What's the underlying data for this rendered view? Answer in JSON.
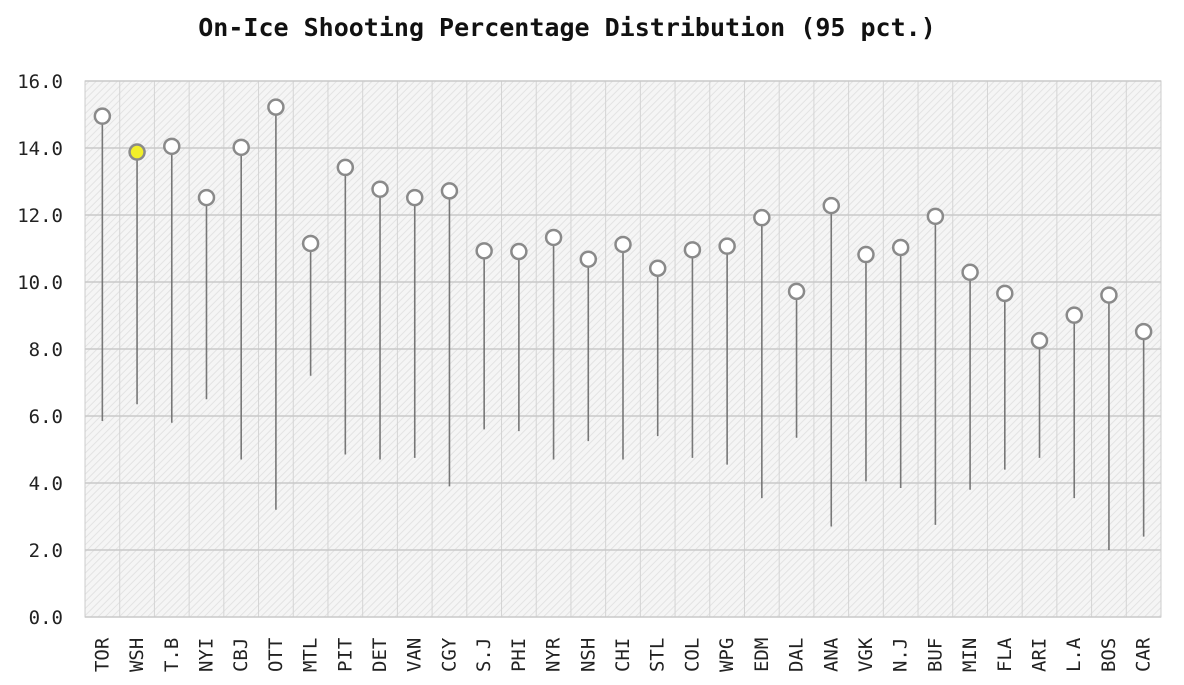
{
  "chart_data": {
    "type": "scatter",
    "title": "On-Ice Shooting Percentage Distribution (95 pct.)",
    "xlabel": "",
    "ylabel": "",
    "ylim": [
      0,
      16
    ],
    "y_ticks": [
      "0.0",
      "2.0",
      "4.0",
      "6.0",
      "8.0",
      "10.0",
      "12.0",
      "14.0",
      "16.0"
    ],
    "grid": true,
    "categories": [
      "TOR",
      "WSH",
      "T.B",
      "NYI",
      "CBJ",
      "OTT",
      "MTL",
      "PIT",
      "DET",
      "VAN",
      "CGY",
      "S.J",
      "PHI",
      "NYR",
      "NSH",
      "CHI",
      "STL",
      "COL",
      "WPG",
      "EDM",
      "DAL",
      "ANA",
      "VGK",
      "N.J",
      "BUF",
      "MIN",
      "FLA",
      "ARI",
      "L.A",
      "BOS",
      "CAR"
    ],
    "values": [
      14.95,
      13.88,
      14.05,
      12.52,
      14.02,
      15.22,
      11.15,
      13.42,
      12.77,
      12.52,
      12.72,
      10.93,
      10.91,
      11.33,
      10.68,
      11.12,
      10.41,
      10.96,
      11.07,
      11.92,
      9.72,
      12.28,
      10.82,
      11.03,
      11.96,
      10.29,
      9.66,
      8.25,
      9.01,
      9.61,
      8.52
    ],
    "lower": [
      5.85,
      6.35,
      5.8,
      6.5,
      4.7,
      3.2,
      7.2,
      4.85,
      4.7,
      4.75,
      3.9,
      5.6,
      5.55,
      4.7,
      5.25,
      4.7,
      5.4,
      4.75,
      4.55,
      3.55,
      5.35,
      2.7,
      4.05,
      3.85,
      2.75,
      3.8,
      4.4,
      4.75,
      3.55,
      2.0,
      2.4
    ],
    "highlight_index": 1,
    "colors": {
      "marker_fill": "#ffffff",
      "marker_stroke": "#8a8a8a",
      "highlight_fill": "#f2ef2a",
      "highlight_stroke": "#8a8a8a",
      "whisker": "#777777",
      "grid": "#d4d4d4",
      "plot_background": "#f3f3f3"
    }
  }
}
